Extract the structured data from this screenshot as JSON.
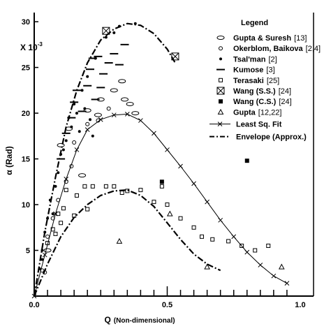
{
  "chart_data": {
    "type": "scatter",
    "title": "",
    "xlabel": "Q",
    "xlabel_unit": "(Non-dimensional)",
    "ylabel": "α (Rad)",
    "y_multiplier": "X 10",
    "y_multiplier_exp": "-3",
    "xlim": [
      0,
      1.05
    ],
    "ylim": [
      0,
      31
    ],
    "x_ticks": [
      0.0,
      0.5,
      1.0
    ],
    "x_tick_labels": [
      "0.0",
      "0.5",
      "1.0"
    ],
    "y_ticks": [
      5,
      10,
      15,
      20,
      25,
      30
    ],
    "y_tick_labels": [
      "5",
      "10",
      "15",
      "20",
      "25",
      "30"
    ],
    "legend_title": "Legend",
    "legend_position": "top-right",
    "series": [
      {
        "name": "Gupta & Suresh",
        "ref": "[13]",
        "marker": "ellipse",
        "points": [
          [
            0.1,
            16.5
          ],
          [
            0.13,
            18.3
          ],
          [
            0.2,
            20.3
          ],
          [
            0.25,
            21.5
          ],
          [
            0.3,
            22.5
          ],
          [
            0.33,
            23.5
          ],
          [
            0.34,
            21.5
          ],
          [
            0.36,
            21.0
          ],
          [
            0.38,
            20.0
          ],
          [
            0.24,
            19.8
          ],
          [
            0.05,
            5.0
          ],
          [
            0.18,
            13.2
          ]
        ]
      },
      {
        "name": "Okerblom, Baikova",
        "ref": "[2,4]",
        "marker": "circle",
        "points": [
          [
            0.03,
            2.8
          ],
          [
            0.05,
            6.5
          ],
          [
            0.07,
            8.5
          ],
          [
            0.09,
            10.5
          ],
          [
            0.12,
            12.5
          ],
          [
            0.14,
            14.2
          ],
          [
            0.15,
            16.8
          ],
          [
            0.2,
            18.8
          ],
          [
            0.24,
            19.2
          ],
          [
            0.28,
            20.5
          ],
          [
            0.04,
            2.6
          ]
        ]
      },
      {
        "name": "Tsal'man",
        "ref": "[2]",
        "marker": "dot",
        "points": [
          [
            0.02,
            3.0
          ],
          [
            0.03,
            5.0
          ],
          [
            0.04,
            7.0
          ],
          [
            0.05,
            8.5
          ],
          [
            0.06,
            10.5
          ],
          [
            0.08,
            12.0
          ],
          [
            0.09,
            13.5
          ],
          [
            0.1,
            15.5
          ],
          [
            0.12,
            17.0
          ],
          [
            0.14,
            18.5
          ],
          [
            0.16,
            20.0
          ],
          [
            0.18,
            22.5
          ],
          [
            0.2,
            24.0
          ],
          [
            0.23,
            26.0
          ],
          [
            0.27,
            28.3
          ],
          [
            0.3,
            28.8
          ],
          [
            0.32,
            29.5
          ],
          [
            0.38,
            29.8
          ],
          [
            0.11,
            16.0
          ],
          [
            0.13,
            19.5
          ],
          [
            0.15,
            21.0
          ],
          [
            0.17,
            18.0
          ],
          [
            0.19,
            20.5
          ],
          [
            0.21,
            19.3
          ],
          [
            0.22,
            17.5
          ],
          [
            0.07,
            9.0
          ],
          [
            0.03,
            4.0
          ]
        ]
      },
      {
        "name": "Kumose",
        "ref": "[3]",
        "marker": "hline",
        "points": [
          [
            0.1,
            15.0
          ],
          [
            0.12,
            17.8
          ],
          [
            0.14,
            19.5
          ],
          [
            0.15,
            21.2
          ],
          [
            0.16,
            22.5
          ],
          [
            0.18,
            20.2
          ],
          [
            0.2,
            23.0
          ],
          [
            0.21,
            24.8
          ],
          [
            0.23,
            21.5
          ],
          [
            0.25,
            22.8
          ],
          [
            0.26,
            24.3
          ],
          [
            0.28,
            25.5
          ],
          [
            0.3,
            26.5
          ],
          [
            0.32,
            25.3
          ],
          [
            0.34,
            27.5
          ],
          [
            0.22,
            26.0
          ],
          [
            0.24,
            26.2
          ]
        ]
      },
      {
        "name": "Terasaki",
        "ref": "[25]",
        "marker": "square",
        "points": [
          [
            0.05,
            5.8
          ],
          [
            0.07,
            7.3
          ],
          [
            0.09,
            9.0
          ],
          [
            0.11,
            9.6
          ],
          [
            0.12,
            11.6
          ],
          [
            0.15,
            8.8
          ],
          [
            0.16,
            11.0
          ],
          [
            0.19,
            12.0
          ],
          [
            0.2,
            9.5
          ],
          [
            0.22,
            12.0
          ],
          [
            0.27,
            12.0
          ],
          [
            0.3,
            12.0
          ],
          [
            0.33,
            11.3
          ],
          [
            0.35,
            11.5
          ],
          [
            0.4,
            11.6
          ],
          [
            0.45,
            10.3
          ],
          [
            0.48,
            12.0
          ],
          [
            0.5,
            10.0
          ],
          [
            0.55,
            8.5
          ],
          [
            0.6,
            7.5
          ],
          [
            0.63,
            6.5
          ],
          [
            0.67,
            6.2
          ],
          [
            0.73,
            6.0
          ],
          [
            0.78,
            5.5
          ],
          [
            0.83,
            5.0
          ],
          [
            0.88,
            5.5
          ],
          [
            0.1,
            8.0
          ],
          [
            0.08,
            6.8
          ]
        ]
      },
      {
        "name": "Wang (S.S.)",
        "ref": "[24]",
        "marker": "xsquare",
        "points": [
          [
            0.27,
            29.0
          ],
          [
            0.53,
            26.2
          ]
        ]
      },
      {
        "name": "Wang (C.S.)",
        "ref": "[24]",
        "marker": "filled-square",
        "points": [
          [
            0.48,
            12.5
          ],
          [
            0.8,
            14.8
          ]
        ]
      },
      {
        "name": "Gupta",
        "ref": "[12,22]",
        "marker": "triangle",
        "points": [
          [
            0.65,
            3.2
          ],
          [
            0.93,
            3.2
          ],
          [
            0.51,
            9.0
          ],
          [
            0.32,
            6.0
          ]
        ]
      }
    ],
    "curves": [
      {
        "name": "Least Sq. Fit",
        "style": "line-cross",
        "points": [
          [
            0.0,
            0.0
          ],
          [
            0.04,
            4.5
          ],
          [
            0.08,
            9.0
          ],
          [
            0.12,
            12.8
          ],
          [
            0.16,
            16.0
          ],
          [
            0.2,
            18.2
          ],
          [
            0.25,
            19.3
          ],
          [
            0.3,
            19.8
          ],
          [
            0.35,
            19.9
          ],
          [
            0.4,
            19.2
          ],
          [
            0.45,
            17.8
          ],
          [
            0.5,
            16.0
          ],
          [
            0.55,
            14.2
          ],
          [
            0.6,
            12.3
          ],
          [
            0.65,
            10.3
          ],
          [
            0.7,
            8.3
          ],
          [
            0.75,
            6.5
          ],
          [
            0.8,
            4.8
          ],
          [
            0.85,
            3.4
          ],
          [
            0.9,
            2.2
          ],
          [
            0.95,
            1.4
          ]
        ]
      },
      {
        "name": "Envelope (Approx.)",
        "style": "dash-dot",
        "points": [
          [
            0.0,
            0.0
          ],
          [
            0.04,
            7.0
          ],
          [
            0.08,
            13.0
          ],
          [
            0.12,
            18.5
          ],
          [
            0.16,
            22.5
          ],
          [
            0.2,
            25.5
          ],
          [
            0.25,
            28.0
          ],
          [
            0.3,
            29.2
          ],
          [
            0.35,
            29.8
          ],
          [
            0.4,
            29.6
          ],
          [
            0.45,
            28.7
          ],
          [
            0.5,
            27.0
          ],
          [
            0.53,
            25.5
          ]
        ]
      },
      {
        "name": "",
        "style": "dash-dot",
        "points": [
          [
            0.0,
            0.0
          ],
          [
            0.05,
            3.5
          ],
          [
            0.1,
            6.5
          ],
          [
            0.15,
            8.6
          ],
          [
            0.2,
            10.0
          ],
          [
            0.25,
            11.0
          ],
          [
            0.3,
            11.5
          ],
          [
            0.35,
            11.6
          ],
          [
            0.4,
            11.0
          ],
          [
            0.45,
            9.8
          ],
          [
            0.5,
            8.0
          ],
          [
            0.55,
            6.2
          ],
          [
            0.6,
            4.6
          ],
          [
            0.65,
            3.5
          ],
          [
            0.7,
            2.8
          ]
        ]
      }
    ]
  }
}
